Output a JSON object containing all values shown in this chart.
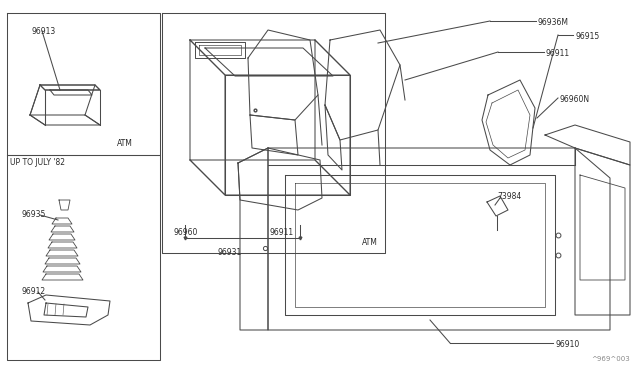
{
  "bg_color": "#ffffff",
  "line_color": "#4a4a4a",
  "text_color": "#2a2a2a",
  "fig_width": 6.4,
  "fig_height": 3.72,
  "watermark": "^969^003",
  "labels": {
    "96913": "96913",
    "96935": "96935",
    "96912": "96912",
    "96960": "96960",
    "96911_box": "96911",
    "96931": "96931",
    "atm_top": "ATM",
    "atm_box": "ATM",
    "up_to_july": "UP TO JULY '82",
    "96936M": "96936M",
    "96915": "96915",
    "96911": "96911",
    "96960N": "96960N",
    "73984": "73984",
    "96910": "96910"
  }
}
